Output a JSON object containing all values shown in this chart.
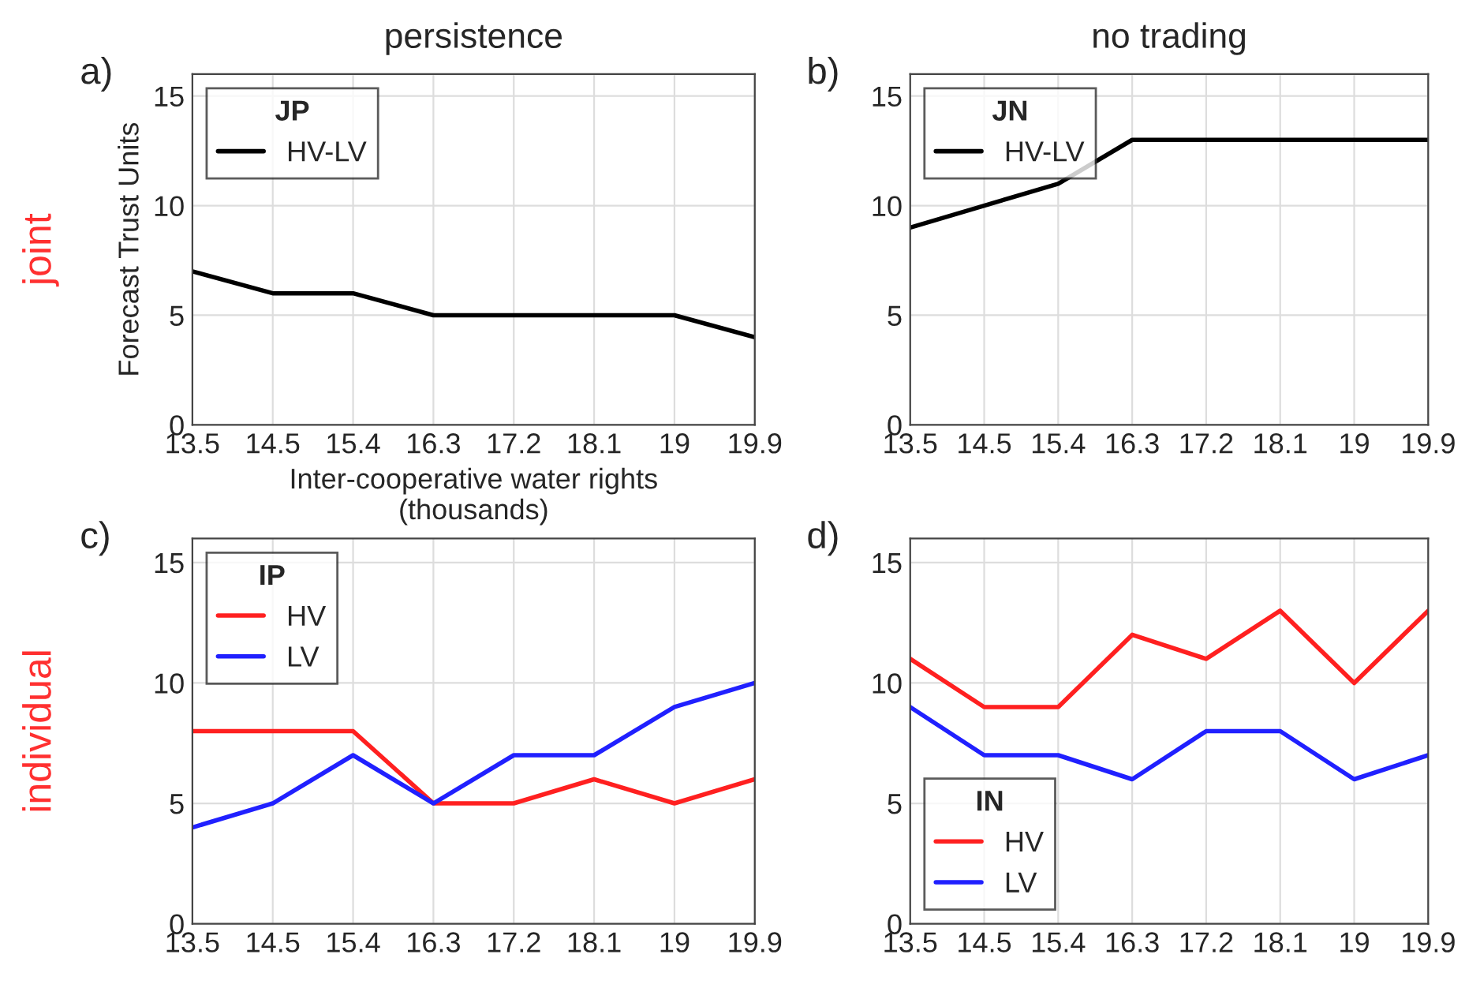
{
  "chart_data": [
    {
      "type": "line",
      "title": "persistence",
      "ylabel": "Forecast Trust Units",
      "xlabel": "Inter-cooperative water rights\n(thousands)",
      "legend_title": "JP",
      "annotations": [
        "a)",
        "joint"
      ],
      "categories": [
        "13.5",
        "14.5",
        "15.4",
        "16.3",
        "17.2",
        "18.1",
        "19",
        "19.9"
      ],
      "series": [
        {
          "name": "HV-LV",
          "color": "#000000",
          "values": [
            7,
            6,
            6,
            5,
            5,
            5,
            5,
            4
          ]
        }
      ],
      "ylim": [
        0,
        16
      ],
      "yticks": [
        0,
        5,
        10,
        15
      ],
      "grid": true,
      "legend": "top left"
    },
    {
      "type": "line",
      "title": "no trading",
      "legend_title": "JN",
      "annotations": [
        "b)"
      ],
      "categories": [
        "13.5",
        "14.5",
        "15.4",
        "16.3",
        "17.2",
        "18.1",
        "19",
        "19.9"
      ],
      "series": [
        {
          "name": "HV-LV",
          "color": "#000000",
          "values": [
            9,
            10,
            11,
            13,
            13,
            13,
            13,
            13
          ]
        }
      ],
      "ylim": [
        0,
        16
      ],
      "yticks": [
        0,
        5,
        10,
        15
      ],
      "grid": true,
      "legend": "top left"
    },
    {
      "type": "line",
      "legend_title": "IP",
      "annotations": [
        "c)",
        "individual"
      ],
      "categories": [
        "13.5",
        "14.5",
        "15.4",
        "16.3",
        "17.2",
        "18.1",
        "19",
        "19.9"
      ],
      "series": [
        {
          "name": "HV",
          "color": "#ff2020",
          "values": [
            8,
            8,
            8,
            5,
            5,
            6,
            5,
            6
          ]
        },
        {
          "name": "LV",
          "color": "#2020ff",
          "values": [
            4,
            5,
            7,
            5,
            7,
            7,
            9,
            10
          ]
        }
      ],
      "ylim": [
        0,
        16
      ],
      "yticks": [
        0,
        5,
        10,
        15
      ],
      "grid": true,
      "legend": "top left"
    },
    {
      "type": "line",
      "legend_title": "IN",
      "annotations": [
        "d)"
      ],
      "categories": [
        "13.5",
        "14.5",
        "15.4",
        "16.3",
        "17.2",
        "18.1",
        "19",
        "19.9"
      ],
      "series": [
        {
          "name": "HV",
          "color": "#ff2020",
          "values": [
            11,
            9,
            9,
            12,
            11,
            13,
            10,
            13
          ]
        },
        {
          "name": "LV",
          "color": "#2020ff",
          "values": [
            9,
            7,
            7,
            6,
            8,
            8,
            6,
            7
          ]
        }
      ],
      "ylim": [
        0,
        16
      ],
      "yticks": [
        0,
        5,
        10,
        15
      ],
      "grid": true,
      "legend": "bottom left"
    }
  ]
}
